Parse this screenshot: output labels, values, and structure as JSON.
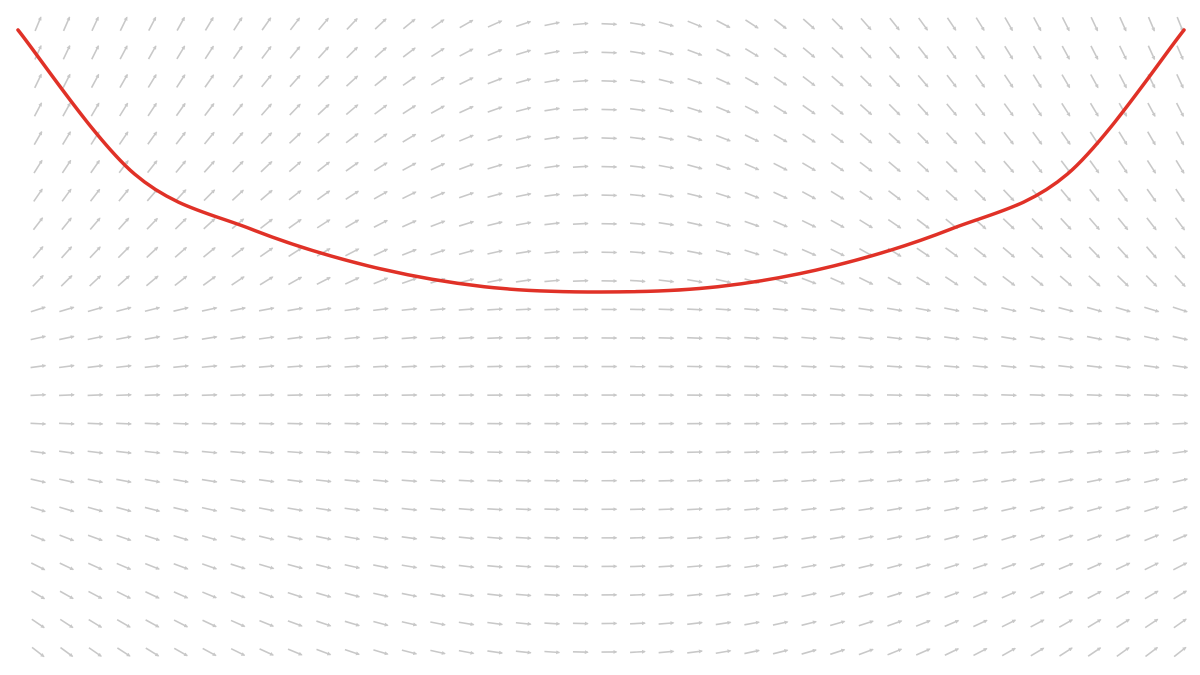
{
  "figure": {
    "kind": "slope-field-with-solution-curve",
    "background_color": "#ffffff",
    "arrow_color": "#c8c8c8",
    "curve_color": "#e03127",
    "arrow_grid": {
      "columns": 41,
      "rows": 23
    },
    "curve": {
      "shape": "u-shaped",
      "description_points": [
        {
          "x": -1.0,
          "y": 1.0
        },
        {
          "x": -0.8,
          "y": 0.45
        },
        {
          "x": -0.6,
          "y": 0.24
        },
        {
          "x": -0.4,
          "y": 0.1
        },
        {
          "x": -0.2,
          "y": 0.02
        },
        {
          "x": 0.0,
          "y": 0.0
        },
        {
          "x": 0.2,
          "y": 0.02
        },
        {
          "x": 0.4,
          "y": 0.1
        },
        {
          "x": 0.6,
          "y": 0.24
        },
        {
          "x": 0.8,
          "y": 0.45
        },
        {
          "x": 1.0,
          "y": 1.0
        }
      ]
    }
  }
}
